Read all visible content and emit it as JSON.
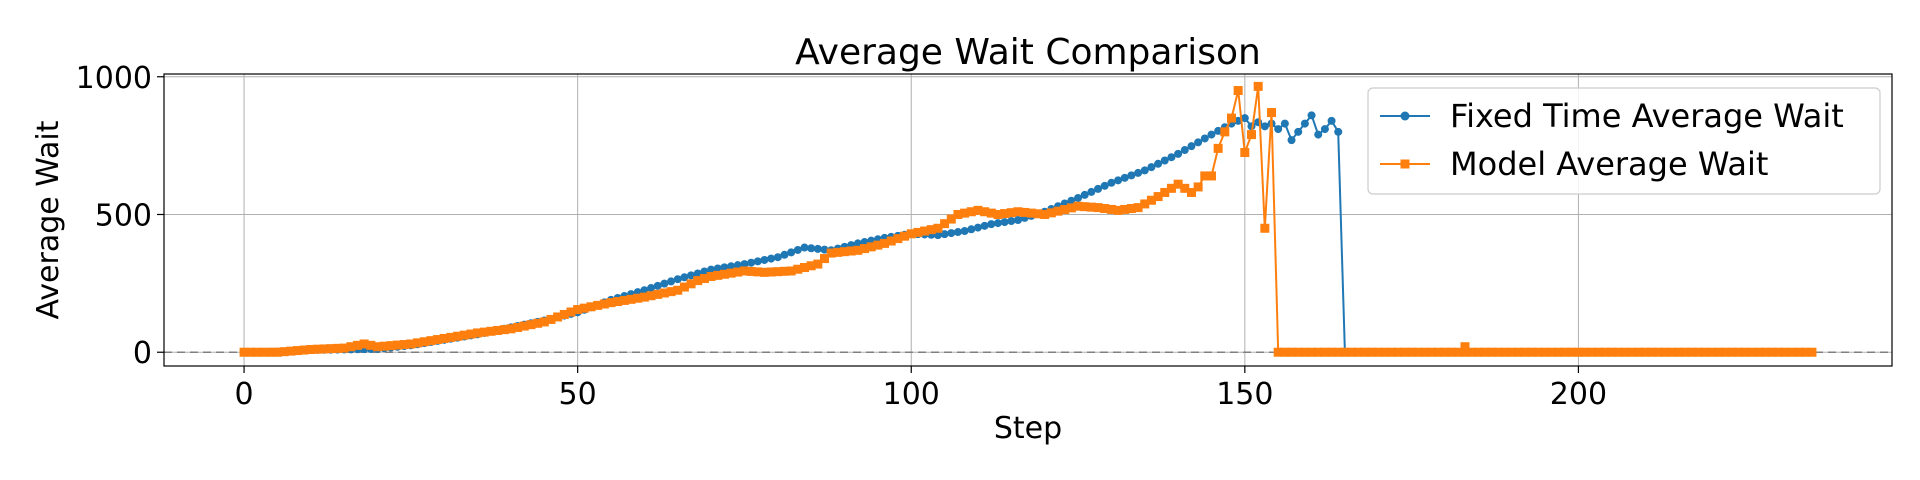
{
  "chart_data": {
    "type": "line",
    "title": "Average Wait Comparison",
    "xlabel": "Step",
    "ylabel": "Average Wait",
    "xlim": [
      -12,
      247
    ],
    "ylim": [
      -50,
      1010
    ],
    "xticks": [
      0,
      50,
      100,
      150,
      200
    ],
    "yticks": [
      0,
      500,
      1000
    ],
    "grid": true,
    "legend_position": "top-right",
    "reference_line": {
      "y": 0,
      "style": "dashed",
      "color": "#808080"
    },
    "series": [
      {
        "name": "Fixed Time Average Wait",
        "color": "#1f77b4",
        "marker": "circle",
        "keypoints": [
          [
            0,
            0
          ],
          [
            5,
            2
          ],
          [
            10,
            8
          ],
          [
            15,
            10
          ],
          [
            20,
            12
          ],
          [
            25,
            25
          ],
          [
            30,
            45
          ],
          [
            35,
            65
          ],
          [
            40,
            90
          ],
          [
            45,
            115
          ],
          [
            50,
            145
          ],
          [
            55,
            190
          ],
          [
            60,
            225
          ],
          [
            65,
            265
          ],
          [
            70,
            300
          ],
          [
            75,
            320
          ],
          [
            80,
            345
          ],
          [
            84,
            380
          ],
          [
            88,
            370
          ],
          [
            92,
            395
          ],
          [
            96,
            415
          ],
          [
            100,
            430
          ],
          [
            104,
            425
          ],
          [
            108,
            440
          ],
          [
            112,
            465
          ],
          [
            116,
            480
          ],
          [
            120,
            510
          ],
          [
            125,
            560
          ],
          [
            130,
            615
          ],
          [
            135,
            660
          ],
          [
            140,
            720
          ],
          [
            145,
            790
          ],
          [
            148,
            830
          ],
          [
            150,
            850
          ],
          [
            151,
            820
          ],
          [
            152,
            835
          ],
          [
            153,
            820
          ],
          [
            154,
            830
          ],
          [
            155,
            810
          ],
          [
            156,
            830
          ],
          [
            157,
            770
          ],
          [
            158,
            800
          ],
          [
            159,
            830
          ],
          [
            160,
            860
          ],
          [
            161,
            790
          ],
          [
            162,
            810
          ],
          [
            163,
            840
          ],
          [
            164,
            800
          ],
          [
            165,
            0
          ],
          [
            235,
            0
          ]
        ]
      },
      {
        "name": "Model Average Wait",
        "color": "#ff7f0e",
        "marker": "square",
        "keypoints": [
          [
            0,
            0
          ],
          [
            5,
            0
          ],
          [
            10,
            10
          ],
          [
            15,
            15
          ],
          [
            18,
            30
          ],
          [
            20,
            20
          ],
          [
            25,
            30
          ],
          [
            30,
            50
          ],
          [
            35,
            70
          ],
          [
            40,
            85
          ],
          [
            45,
            110
          ],
          [
            50,
            155
          ],
          [
            53,
            170
          ],
          [
            55,
            180
          ],
          [
            60,
            200
          ],
          [
            65,
            225
          ],
          [
            68,
            260
          ],
          [
            70,
            275
          ],
          [
            75,
            295
          ],
          [
            78,
            290
          ],
          [
            82,
            295
          ],
          [
            86,
            320
          ],
          [
            88,
            360
          ],
          [
            92,
            370
          ],
          [
            96,
            395
          ],
          [
            100,
            430
          ],
          [
            104,
            450
          ],
          [
            107,
            500
          ],
          [
            110,
            515
          ],
          [
            113,
            500
          ],
          [
            116,
            510
          ],
          [
            120,
            500
          ],
          [
            125,
            530
          ],
          [
            128,
            525
          ],
          [
            131,
            515
          ],
          [
            134,
            525
          ],
          [
            137,
            565
          ],
          [
            140,
            610
          ],
          [
            142,
            580
          ],
          [
            143,
            600
          ],
          [
            144,
            640
          ],
          [
            145,
            640
          ],
          [
            146,
            740
          ],
          [
            147,
            800
          ],
          [
            148,
            850
          ],
          [
            149,
            950
          ],
          [
            150,
            725
          ],
          [
            151,
            790
          ],
          [
            152,
            965
          ],
          [
            153,
            450
          ],
          [
            154,
            870
          ],
          [
            155,
            0
          ],
          [
            183,
            0
          ],
          [
            183,
            20
          ],
          [
            184,
            0
          ],
          [
            235,
            0
          ]
        ]
      }
    ]
  }
}
